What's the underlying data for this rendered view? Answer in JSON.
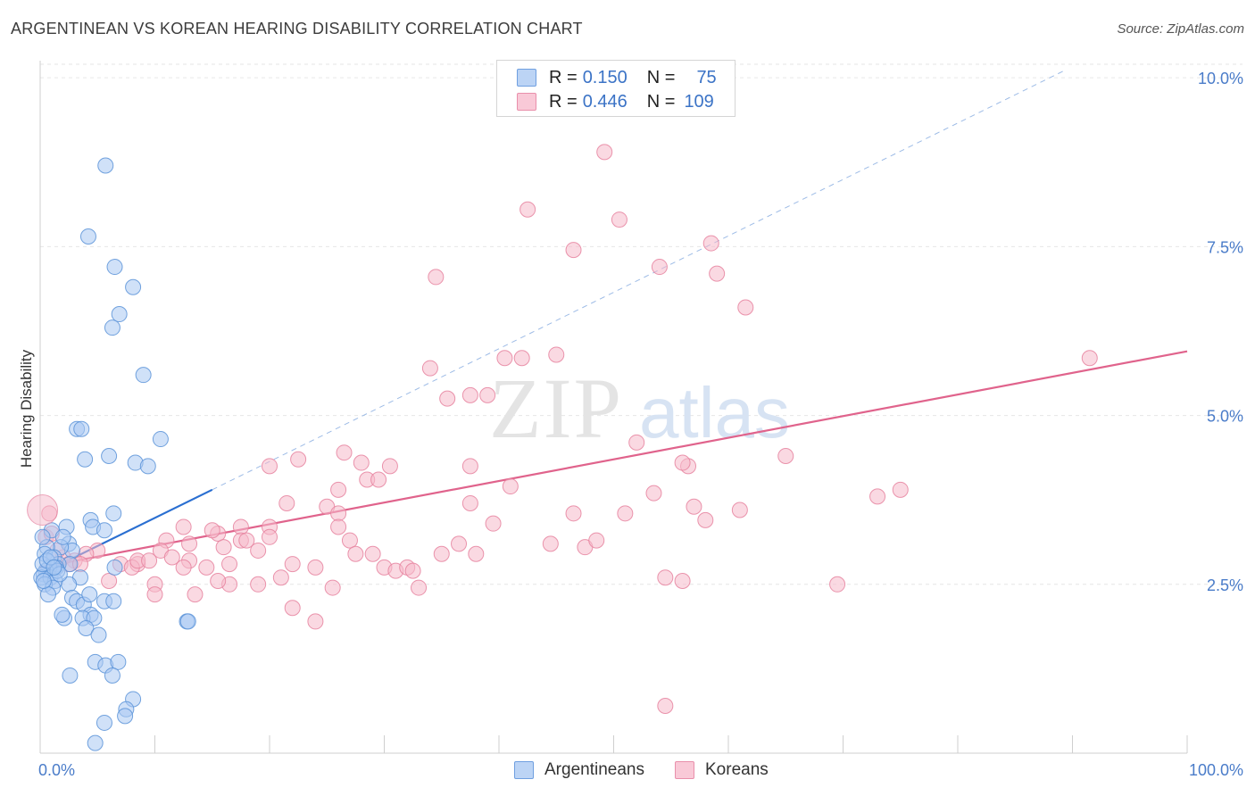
{
  "title": "ARGENTINEAN VS KOREAN HEARING DISABILITY CORRELATION CHART",
  "source": "Source: ZipAtlas.com",
  "watermark": {
    "zip": "ZIP",
    "atlas": "atlas"
  },
  "colors": {
    "blue_fill": "#a9c8f2",
    "blue_stroke": "#5b93d8",
    "blue_line": "#2a6fd1",
    "pink_fill": "#f6b9cb",
    "pink_stroke": "#e6829f",
    "pink_line": "#e0638c",
    "tick_text": "#4a7cc9",
    "grid": "#e6e6e6"
  },
  "legend": {
    "rows": [
      {
        "r_label": "R =",
        "r_value": "0.150",
        "n_label": "N =",
        "n_value": "75"
      },
      {
        "r_label": "R =",
        "r_value": "0.446",
        "n_label": "N =",
        "n_value": "109"
      }
    ]
  },
  "bottom_legend": {
    "argentineans": "Argentineans",
    "koreans": "Koreans"
  },
  "chart_data": {
    "type": "scatter",
    "xlabel": "",
    "ylabel": "Hearing Disability",
    "xlim": [
      0,
      100
    ],
    "ylim": [
      0,
      10.2
    ],
    "x_tick_labels": [
      "0.0%",
      "100.0%"
    ],
    "y_ticks": [
      {
        "value": 2.5,
        "label": "2.5%"
      },
      {
        "value": 5.0,
        "label": "5.0%"
      },
      {
        "value": 7.5,
        "label": "7.5%"
      },
      {
        "value": 10.0,
        "label": "10.0%"
      }
    ],
    "grid": true,
    "series": [
      {
        "name": "Argentineans",
        "trend": {
          "x0": 0,
          "y0": 2.65,
          "x1": 15,
          "y1": 3.9,
          "dashed_to_x": 100,
          "dashed_to_y": 11.0
        },
        "points": [
          [
            5.7,
            8.7
          ],
          [
            4.2,
            7.65
          ],
          [
            6.5,
            7.2
          ],
          [
            8.1,
            6.9
          ],
          [
            6.3,
            6.3
          ],
          [
            6.9,
            6.5
          ],
          [
            9.0,
            5.6
          ],
          [
            3.2,
            4.8
          ],
          [
            3.6,
            4.8
          ],
          [
            3.9,
            4.35
          ],
          [
            6.0,
            4.4
          ],
          [
            8.3,
            4.3
          ],
          [
            9.4,
            4.25
          ],
          [
            10.5,
            4.65
          ],
          [
            6.4,
            3.55
          ],
          [
            4.4,
            3.45
          ],
          [
            4.6,
            3.35
          ],
          [
            5.6,
            3.3
          ],
          [
            1.0,
            3.3
          ],
          [
            2.3,
            3.35
          ],
          [
            2.5,
            3.1
          ],
          [
            2.8,
            3.0
          ],
          [
            1.8,
            3.05
          ],
          [
            0.6,
            3.05
          ],
          [
            0.2,
            3.2
          ],
          [
            0.4,
            2.95
          ],
          [
            1.2,
            2.9
          ],
          [
            2.6,
            2.8
          ],
          [
            1.6,
            2.8
          ],
          [
            1.4,
            2.75
          ],
          [
            0.8,
            2.75
          ],
          [
            0.5,
            2.7
          ],
          [
            0.3,
            2.65
          ],
          [
            0.1,
            2.6
          ],
          [
            0.9,
            2.6
          ],
          [
            1.3,
            2.55
          ],
          [
            0.4,
            2.5
          ],
          [
            1.1,
            2.45
          ],
          [
            0.7,
            2.35
          ],
          [
            3.5,
            2.6
          ],
          [
            6.5,
            2.75
          ],
          [
            2.5,
            2.5
          ],
          [
            2.8,
            2.3
          ],
          [
            3.2,
            2.25
          ],
          [
            3.8,
            2.2
          ],
          [
            5.6,
            2.25
          ],
          [
            4.3,
            2.35
          ],
          [
            6.4,
            2.25
          ],
          [
            4.4,
            2.05
          ],
          [
            2.1,
            2.0
          ],
          [
            1.9,
            2.05
          ],
          [
            3.7,
            2.0
          ],
          [
            4.7,
            2.0
          ],
          [
            4.0,
            1.85
          ],
          [
            5.1,
            1.75
          ],
          [
            12.8,
            1.95
          ],
          [
            12.9,
            1.95
          ],
          [
            4.8,
            1.35
          ],
          [
            5.7,
            1.3
          ],
          [
            6.8,
            1.35
          ],
          [
            2.6,
            1.15
          ],
          [
            6.3,
            1.15
          ],
          [
            8.1,
            0.8
          ],
          [
            7.5,
            0.65
          ],
          [
            7.4,
            0.55
          ],
          [
            5.6,
            0.45
          ],
          [
            4.8,
            0.15
          ],
          [
            0.2,
            2.8
          ],
          [
            0.6,
            2.85
          ],
          [
            1.5,
            2.7
          ],
          [
            0.9,
            2.9
          ],
          [
            2.0,
            3.2
          ],
          [
            0.3,
            2.55
          ],
          [
            1.7,
            2.65
          ],
          [
            1.2,
            2.75
          ]
        ]
      },
      {
        "name": "Koreans",
        "trend": {
          "x0": 0,
          "y0": 2.75,
          "x1": 100,
          "y1": 5.95
        },
        "points": [
          [
            49.2,
            8.9
          ],
          [
            42.5,
            8.05
          ],
          [
            50.5,
            7.9
          ],
          [
            46.5,
            7.45
          ],
          [
            58.5,
            7.55
          ],
          [
            54.0,
            7.2
          ],
          [
            59.0,
            7.1
          ],
          [
            34.5,
            7.05
          ],
          [
            61.5,
            6.6
          ],
          [
            45.0,
            5.9
          ],
          [
            40.5,
            5.85
          ],
          [
            42.0,
            5.85
          ],
          [
            34.0,
            5.7
          ],
          [
            91.5,
            5.85
          ],
          [
            35.5,
            5.25
          ],
          [
            37.5,
            5.3
          ],
          [
            39.0,
            5.3
          ],
          [
            52.0,
            4.6
          ],
          [
            65.0,
            4.4
          ],
          [
            22.5,
            4.35
          ],
          [
            26.5,
            4.45
          ],
          [
            20.0,
            4.25
          ],
          [
            28.0,
            4.3
          ],
          [
            30.5,
            4.25
          ],
          [
            37.5,
            4.25
          ],
          [
            56.5,
            4.25
          ],
          [
            56.0,
            4.3
          ],
          [
            28.5,
            4.05
          ],
          [
            29.5,
            4.05
          ],
          [
            26.0,
            3.9
          ],
          [
            41.0,
            3.95
          ],
          [
            53.5,
            3.85
          ],
          [
            73.0,
            3.8
          ],
          [
            75.0,
            3.9
          ],
          [
            21.5,
            3.7
          ],
          [
            25.0,
            3.65
          ],
          [
            37.5,
            3.7
          ],
          [
            57.0,
            3.65
          ],
          [
            61.0,
            3.6
          ],
          [
            46.5,
            3.55
          ],
          [
            51.0,
            3.55
          ],
          [
            26.0,
            3.55
          ],
          [
            58.0,
            3.45
          ],
          [
            39.5,
            3.4
          ],
          [
            20.0,
            3.35
          ],
          [
            17.5,
            3.35
          ],
          [
            12.5,
            3.35
          ],
          [
            26.0,
            3.35
          ],
          [
            15.5,
            3.25
          ],
          [
            20.0,
            3.2
          ],
          [
            27.0,
            3.15
          ],
          [
            36.5,
            3.1
          ],
          [
            44.5,
            3.1
          ],
          [
            47.5,
            3.05
          ],
          [
            48.5,
            3.15
          ],
          [
            11.0,
            3.15
          ],
          [
            13.0,
            3.1
          ],
          [
            17.5,
            3.15
          ],
          [
            18.0,
            3.15
          ],
          [
            15.0,
            3.3
          ],
          [
            16.0,
            3.05
          ],
          [
            19.0,
            3.0
          ],
          [
            10.5,
            3.0
          ],
          [
            11.5,
            2.9
          ],
          [
            8.5,
            2.8
          ],
          [
            7.0,
            2.8
          ],
          [
            8.0,
            2.75
          ],
          [
            8.5,
            2.85
          ],
          [
            9.5,
            2.85
          ],
          [
            13.0,
            2.85
          ],
          [
            12.5,
            2.75
          ],
          [
            14.5,
            2.75
          ],
          [
            16.5,
            2.8
          ],
          [
            22.0,
            2.8
          ],
          [
            24.0,
            2.75
          ],
          [
            27.5,
            2.95
          ],
          [
            29.0,
            2.95
          ],
          [
            38.0,
            2.95
          ],
          [
            30.0,
            2.75
          ],
          [
            31.0,
            2.7
          ],
          [
            32.0,
            2.75
          ],
          [
            32.5,
            2.7
          ],
          [
            35.0,
            2.95
          ],
          [
            5.0,
            3.0
          ],
          [
            4.0,
            2.95
          ],
          [
            3.0,
            2.85
          ],
          [
            2.0,
            2.9
          ],
          [
            1.5,
            3.0
          ],
          [
            0.5,
            3.2
          ],
          [
            1.0,
            3.25
          ],
          [
            0.8,
            3.55
          ],
          [
            2.5,
            2.8
          ],
          [
            3.5,
            2.8
          ],
          [
            6.0,
            2.55
          ],
          [
            10.0,
            2.5
          ],
          [
            13.5,
            2.35
          ],
          [
            16.5,
            2.5
          ],
          [
            15.5,
            2.55
          ],
          [
            19.0,
            2.5
          ],
          [
            21.0,
            2.6
          ],
          [
            25.5,
            2.45
          ],
          [
            33.0,
            2.45
          ],
          [
            54.5,
            2.6
          ],
          [
            56.0,
            2.55
          ],
          [
            69.5,
            2.5
          ],
          [
            22.0,
            2.15
          ],
          [
            24.0,
            1.95
          ],
          [
            54.5,
            0.7
          ],
          [
            10.0,
            2.35
          ]
        ]
      }
    ]
  }
}
